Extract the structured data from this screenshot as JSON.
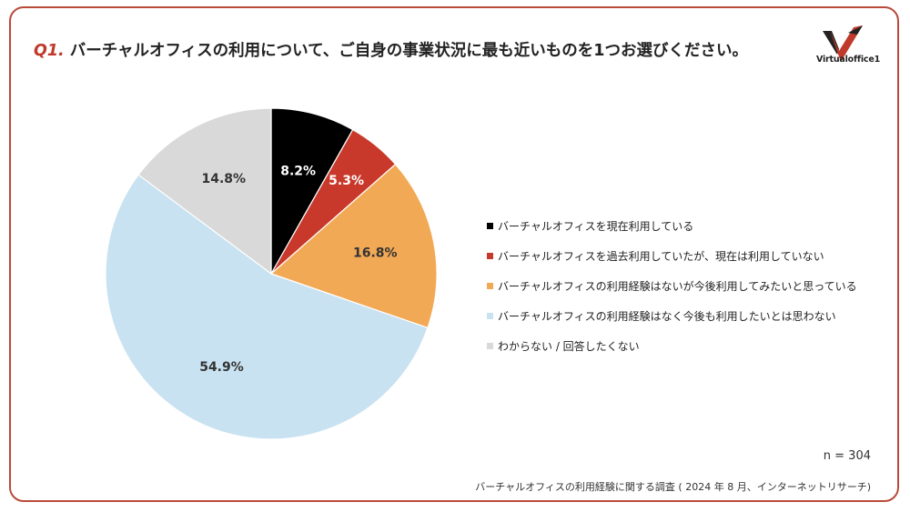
{
  "title": {
    "number": "Q1.",
    "text": "バーチャルオフィスの利用について、ご自身の事業状況に最も近いものを1つお選びください。"
  },
  "logo": {
    "text": "Virtualoffice1"
  },
  "chart_data": {
    "type": "pie",
    "start_angle_deg": 0,
    "direction": "clockwise",
    "slices": [
      {
        "label": "バーチャルオフィスを現在利用している",
        "value": 8.2,
        "display": "8.2%",
        "color": "#000000",
        "label_color": "#ffffff"
      },
      {
        "label": "バーチャルオフィスを過去利用していたが、現在は利用していない",
        "value": 5.3,
        "display": "5.3%",
        "color": "#c8392b",
        "label_color": "#ffffff"
      },
      {
        "label": "バーチャルオフィスの利用経験はないが今後利用してみたいと思っている",
        "value": 16.8,
        "display": "16.8%",
        "color": "#f2a955",
        "label_color": "#333333"
      },
      {
        "label": "バーチャルオフィスの利用経験はなく今後も利用したいとは思わない",
        "value": 54.9,
        "display": "54.9%",
        "color": "#c8e2f1",
        "label_color": "#333333"
      },
      {
        "label": "わからない / 回答したくない",
        "value": 14.8,
        "display": "14.8%",
        "color": "#d9d9d9",
        "label_color": "#333333"
      }
    ],
    "legend_position": "right"
  },
  "footer": {
    "n_label": "n = 304",
    "source": "バーチャルオフィスの利用経験に関する調査 ( 2024 年 8 月、インターネットリサーチ)"
  }
}
